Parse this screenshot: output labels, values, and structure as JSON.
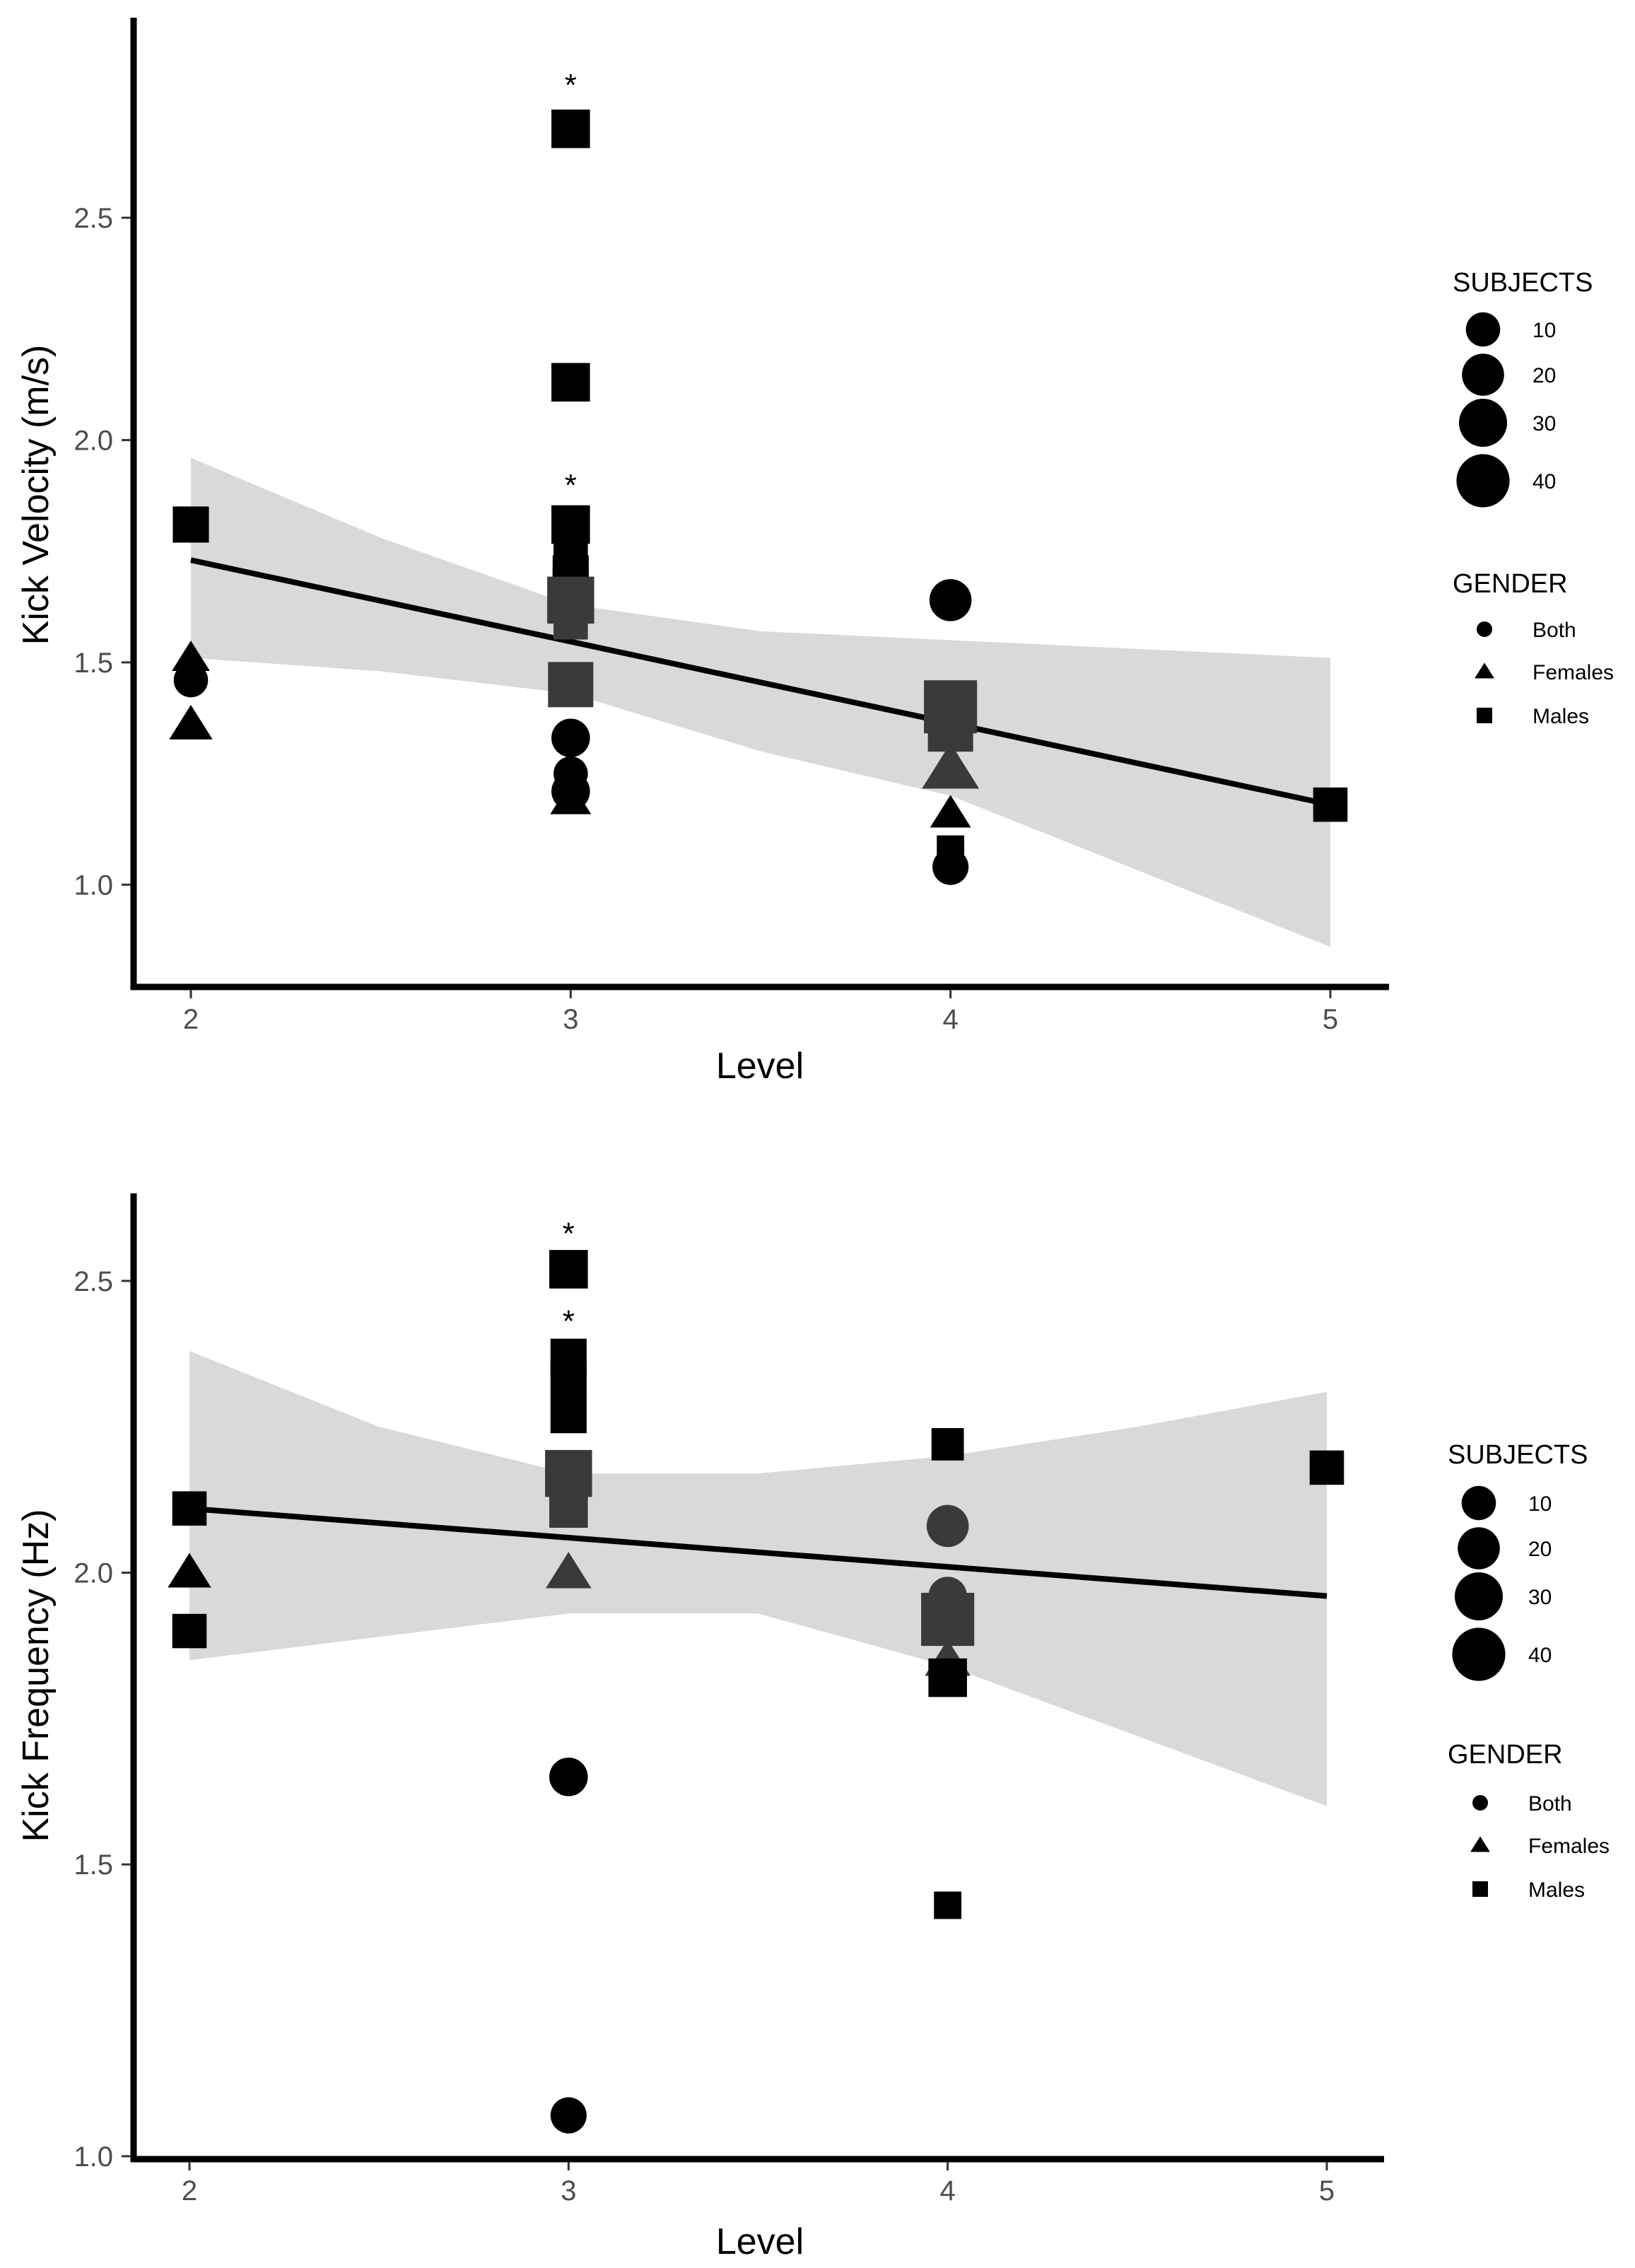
{
  "colors": {
    "band": "#d9d9d9",
    "marker": "#000000",
    "marker_alt": "#3a3a3a",
    "axis": "#000000",
    "tick_text": "#4d4d4d"
  },
  "chart_data": [
    {
      "type": "scatter",
      "xlabel": "Level",
      "ylabel": "Kick Velocity (m/s)",
      "xlim": [
        1.85,
        5.15
      ],
      "ylim": [
        0.77,
        2.95
      ],
      "xticks": [
        2,
        3,
        4,
        5
      ],
      "xtick_labels": [
        "2",
        "3",
        "4",
        "5"
      ],
      "yticks": [
        1.0,
        1.5,
        2.0,
        2.5
      ],
      "ytick_labels": [
        "1.0",
        "1.5",
        "2.0",
        "2.5"
      ],
      "grid": false,
      "fit_line": {
        "x": [
          2,
          5
        ],
        "y": [
          1.73,
          1.18
        ]
      },
      "confidence_band": {
        "x": [
          2,
          2.5,
          3,
          3.5,
          4,
          4.5,
          5
        ],
        "upper": [
          1.96,
          1.78,
          1.63,
          1.57,
          1.55,
          1.53,
          1.51
        ],
        "lower": [
          1.51,
          1.48,
          1.43,
          1.3,
          1.2,
          1.03,
          0.86
        ]
      },
      "points": [
        {
          "level": 2,
          "value": 1.81,
          "gender": "Males",
          "subjects": 12,
          "shade": "dark"
        },
        {
          "level": 2,
          "value": 1.51,
          "gender": "Females",
          "subjects": 6,
          "shade": "dark"
        },
        {
          "level": 2,
          "value": 1.46,
          "gender": "Both",
          "subjects": 10,
          "shade": "dark"
        },
        {
          "level": 2,
          "value": 1.36,
          "gender": "Females",
          "subjects": 10,
          "shade": "dark"
        },
        {
          "level": 3,
          "value": 2.7,
          "gender": "Males",
          "subjects": 15,
          "shade": "dark"
        },
        {
          "level": 3,
          "value": 2.13,
          "gender": "Males",
          "subjects": 15,
          "shade": "dark"
        },
        {
          "level": 3,
          "value": 1.81,
          "gender": "Males",
          "subjects": 15,
          "shade": "dark"
        },
        {
          "level": 3,
          "value": 1.74,
          "gender": "Males",
          "subjects": 10,
          "shade": "dark"
        },
        {
          "level": 3,
          "value": 1.7,
          "gender": "Males",
          "subjects": 12,
          "shade": "dark"
        },
        {
          "level": 3,
          "value": 1.67,
          "gender": "Males",
          "subjects": 12,
          "shade": "dark"
        },
        {
          "level": 3,
          "value": 1.64,
          "gender": "Males",
          "subjects": 28,
          "shade": "mid"
        },
        {
          "level": 3,
          "value": 1.59,
          "gender": "Males",
          "subjects": 10,
          "shade": "mid"
        },
        {
          "level": 3,
          "value": 1.45,
          "gender": "Males",
          "subjects": 25,
          "shade": "mid"
        },
        {
          "level": 3,
          "value": 1.33,
          "gender": "Both",
          "subjects": 15,
          "shade": "dark"
        },
        {
          "level": 3,
          "value": 1.25,
          "gender": "Both",
          "subjects": 10,
          "shade": "dark"
        },
        {
          "level": 3,
          "value": 1.21,
          "gender": "Both",
          "subjects": 15,
          "shade": "dark"
        },
        {
          "level": 3,
          "value": 1.19,
          "gender": "Females",
          "subjects": 8,
          "shade": "dark"
        },
        {
          "level": 4,
          "value": 1.64,
          "gender": "Both",
          "subjects": 20,
          "shade": "dark"
        },
        {
          "level": 4,
          "value": 1.4,
          "gender": "Males",
          "subjects": 40,
          "shade": "mid"
        },
        {
          "level": 4,
          "value": 1.35,
          "gender": "Males",
          "subjects": 25,
          "shade": "mid"
        },
        {
          "level": 4,
          "value": 1.26,
          "gender": "Females",
          "subjects": 25,
          "shade": "mid"
        },
        {
          "level": 4,
          "value": 1.16,
          "gender": "Females",
          "subjects": 8,
          "shade": "dark"
        },
        {
          "level": 4,
          "value": 1.08,
          "gender": "Males",
          "subjects": 4,
          "shade": "dark"
        },
        {
          "level": 4,
          "value": 1.04,
          "gender": "Both",
          "subjects": 12,
          "shade": "dark"
        },
        {
          "level": 5,
          "value": 1.18,
          "gender": "Males",
          "subjects": 10,
          "shade": "dark"
        }
      ],
      "annotations": [
        {
          "text": "*",
          "level": 3,
          "value": 2.81
        },
        {
          "text": "*",
          "level": 3,
          "value": 1.91
        }
      ]
    },
    {
      "type": "scatter",
      "xlabel": "Level",
      "ylabel": "Kick Frequency (Hz)",
      "xlim": [
        1.85,
        5.15
      ],
      "ylim": [
        0.995,
        2.65
      ],
      "xticks": [
        2,
        3,
        4,
        5
      ],
      "xtick_labels": [
        "2",
        "3",
        "4",
        "5"
      ],
      "yticks": [
        1.0,
        1.5,
        2.0,
        2.5
      ],
      "ytick_labels": [
        "1.0",
        "1.5",
        "2.0",
        "2.5"
      ],
      "grid": false,
      "fit_line": {
        "x": [
          2,
          5
        ],
        "y": [
          2.11,
          1.96
        ]
      },
      "confidence_band": {
        "x": [
          2,
          2.5,
          3,
          3.5,
          4,
          4.5,
          5
        ],
        "upper": [
          2.38,
          2.25,
          2.17,
          2.17,
          2.2,
          2.25,
          2.31
        ],
        "lower": [
          1.85,
          1.89,
          1.93,
          1.93,
          1.84,
          1.72,
          1.6
        ]
      },
      "points": [
        {
          "level": 2,
          "value": 2.11,
          "gender": "Males",
          "subjects": 10,
          "shade": "dark"
        },
        {
          "level": 2,
          "value": 2.0,
          "gender": "Females",
          "subjects": 10,
          "shade": "dark"
        },
        {
          "level": 2,
          "value": 1.9,
          "gender": "Males",
          "subjects": 10,
          "shade": "dark"
        },
        {
          "level": 3,
          "value": 2.52,
          "gender": "Males",
          "subjects": 15,
          "shade": "dark"
        },
        {
          "level": 3,
          "value": 2.37,
          "gender": "Males",
          "subjects": 12,
          "shade": "dark"
        },
        {
          "level": 3,
          "value": 2.33,
          "gender": "Males",
          "subjects": 12,
          "shade": "dark"
        },
        {
          "level": 3,
          "value": 2.27,
          "gender": "Males",
          "subjects": 12,
          "shade": "dark"
        },
        {
          "level": 3,
          "value": 2.17,
          "gender": "Males",
          "subjects": 28,
          "shade": "mid"
        },
        {
          "level": 3,
          "value": 2.11,
          "gender": "Males",
          "subjects": 15,
          "shade": "mid"
        },
        {
          "level": 3,
          "value": 2.0,
          "gender": "Females",
          "subjects": 12,
          "shade": "mid"
        },
        {
          "level": 3,
          "value": 1.65,
          "gender": "Both",
          "subjects": 15,
          "shade": "dark"
        },
        {
          "level": 3,
          "value": 1.07,
          "gender": "Both",
          "subjects": 12,
          "shade": "dark"
        },
        {
          "level": 4,
          "value": 2.22,
          "gender": "Males",
          "subjects": 8,
          "shade": "dark"
        },
        {
          "level": 4,
          "value": 2.08,
          "gender": "Both",
          "subjects": 20,
          "shade": "mid"
        },
        {
          "level": 4,
          "value": 1.96,
          "gender": "Both",
          "subjects": 15,
          "shade": "mid"
        },
        {
          "level": 4,
          "value": 1.92,
          "gender": "Males",
          "subjects": 40,
          "shade": "mid"
        },
        {
          "level": 4,
          "value": 1.85,
          "gender": "Females",
          "subjects": 12,
          "shade": "mid"
        },
        {
          "level": 4,
          "value": 1.82,
          "gender": "Males",
          "subjects": 15,
          "shade": "dark"
        },
        {
          "level": 4,
          "value": 1.43,
          "gender": "Males",
          "subjects": 4,
          "shade": "dark"
        },
        {
          "level": 5,
          "value": 2.18,
          "gender": "Males",
          "subjects": 10,
          "shade": "dark"
        }
      ],
      "annotations": [
        {
          "text": "*",
          "level": 3,
          "value": 2.59
        },
        {
          "text": "*",
          "level": 3,
          "value": 2.44
        }
      ]
    }
  ],
  "legends": [
    {
      "size_title": "SUBJECTS",
      "size_entries": [
        {
          "label": "10",
          "subjects": 10
        },
        {
          "label": "20",
          "subjects": 20
        },
        {
          "label": "30",
          "subjects": 30
        },
        {
          "label": "40",
          "subjects": 40
        }
      ],
      "shape_title": "GENDER",
      "shape_entries": [
        {
          "label": "Both",
          "shape": "circle"
        },
        {
          "label": "Females",
          "shape": "triangle"
        },
        {
          "label": "Males",
          "shape": "square"
        }
      ]
    },
    {
      "size_title": "SUBJECTS",
      "size_entries": [
        {
          "label": "10",
          "subjects": 10
        },
        {
          "label": "20",
          "subjects": 20
        },
        {
          "label": "30",
          "subjects": 30
        },
        {
          "label": "40",
          "subjects": 40
        }
      ],
      "shape_title": "GENDER",
      "shape_entries": [
        {
          "label": "Both",
          "shape": "circle"
        },
        {
          "label": "Females",
          "shape": "triangle"
        },
        {
          "label": "Males",
          "shape": "square"
        }
      ]
    }
  ]
}
